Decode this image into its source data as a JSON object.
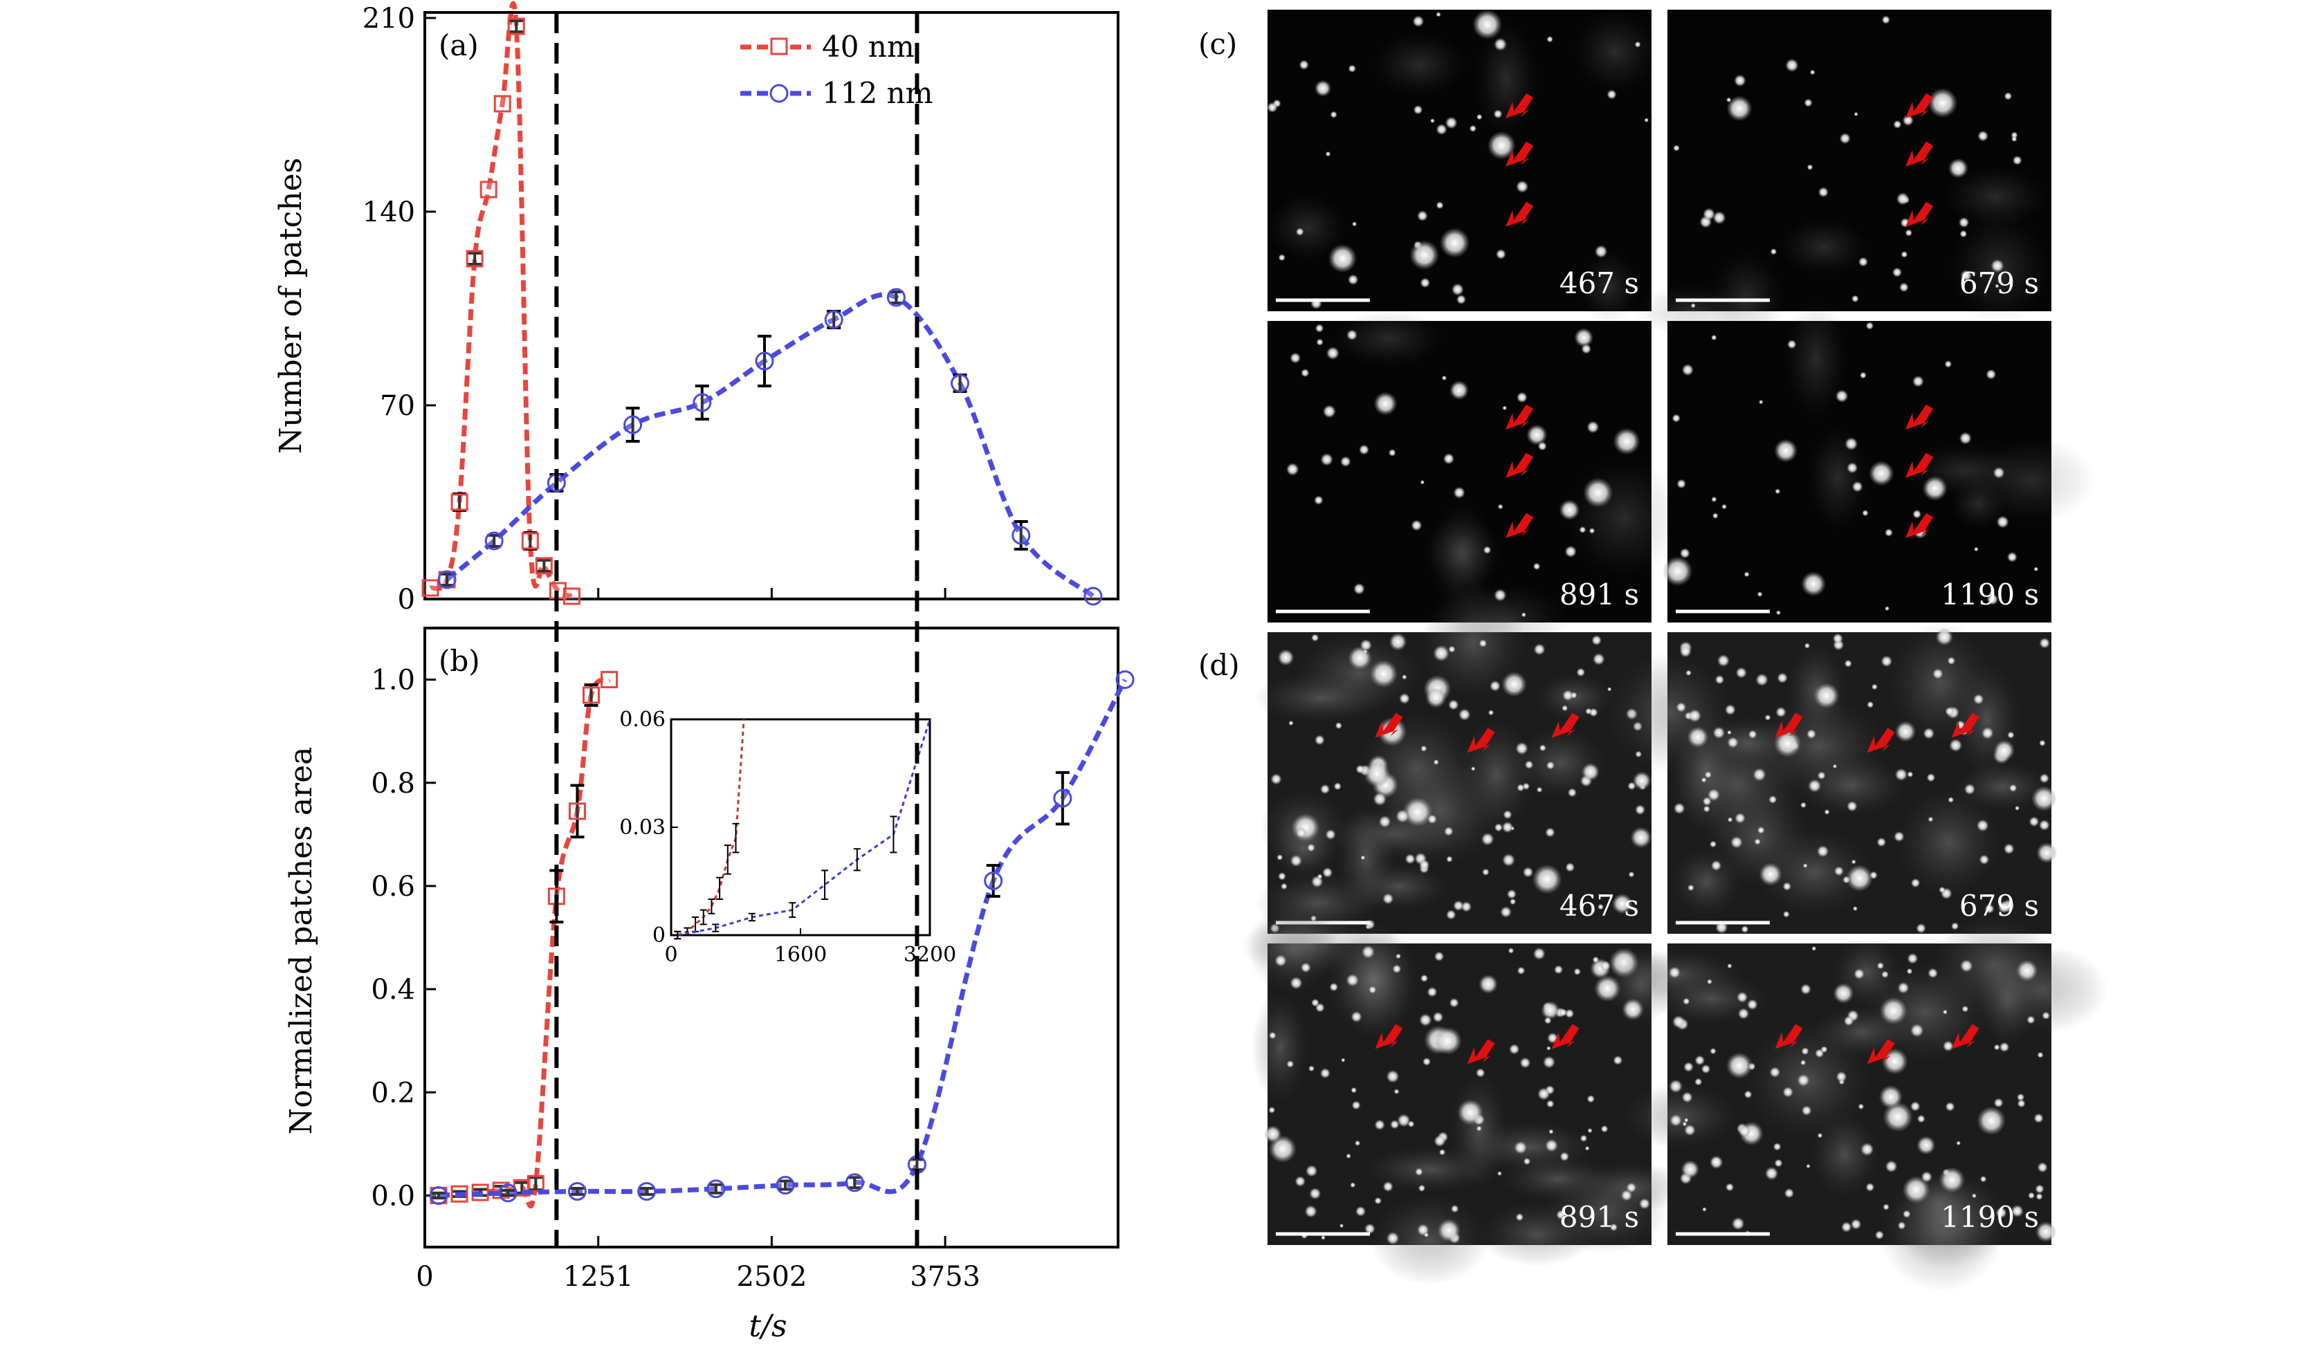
{
  "chart_data": [
    {
      "panel": "(a)",
      "type": "line",
      "ylabel": "Number of patches",
      "ylim": [
        0,
        210
      ],
      "yticks": [
        0,
        70,
        140,
        210
      ],
      "xlim": [
        0,
        5000
      ],
      "series": [
        {
          "name": "40 nm",
          "color": "#e8453c",
          "marker": "square",
          "x": [
            40,
            160,
            250,
            360,
            460,
            560,
            660,
            760,
            860,
            960,
            1060
          ],
          "y": [
            4,
            7,
            35,
            123,
            148,
            179,
            207,
            21,
            12,
            3,
            1
          ],
          "err": [
            0,
            2,
            3,
            2,
            0,
            0,
            2,
            3,
            2,
            0,
            0
          ]
        },
        {
          "name": "112 nm",
          "color": "#4a4ae0",
          "marker": "circle",
          "x": [
            160,
            500,
            950,
            1500,
            2000,
            2450,
            2950,
            3400,
            3860,
            4300,
            4820
          ],
          "y": [
            7,
            21,
            42,
            63,
            71,
            86,
            101,
            109,
            78,
            23,
            1
          ],
          "err": [
            2,
            2,
            3,
            6,
            6,
            9,
            3,
            2,
            3,
            5,
            0
          ]
        }
      ],
      "vlines_x": [
        950,
        3550
      ]
    },
    {
      "panel": "(b)",
      "type": "line",
      "ylabel": "Normalized patches area",
      "xlabel": "t/s",
      "ylim": [
        -0.1,
        1.1
      ],
      "yticks": [
        0,
        0.2,
        0.4,
        0.6,
        0.8,
        1.0
      ],
      "xticks": [
        0,
        1251,
        2502,
        3753
      ],
      "xlim": [
        0,
        5000
      ],
      "series": [
        {
          "name": "40 nm",
          "color": "#e8453c",
          "marker": "square",
          "x": [
            100,
            250,
            400,
            550,
            700,
            800,
            950,
            1100,
            1200,
            1330
          ],
          "y": [
            0.0,
            0.003,
            0.006,
            0.01,
            0.015,
            0.023,
            0.58,
            0.745,
            0.97,
            1.0
          ],
          "err": [
            0.004,
            0.005,
            0.006,
            0.008,
            0.01,
            0.012,
            0.05,
            0.05,
            0.02,
            0.0
          ]
        },
        {
          "name": "112 nm",
          "color": "#4a4ae0",
          "marker": "circle",
          "x": [
            100,
            600,
            1100,
            1600,
            2100,
            2600,
            3100,
            3550,
            4100,
            4600,
            5050
          ],
          "y": [
            0.0,
            0.005,
            0.008,
            0.008,
            0.013,
            0.02,
            0.025,
            0.06,
            0.61,
            0.77,
            1.0
          ],
          "err": [
            0.005,
            0.005,
            0.006,
            0.006,
            0.008,
            0.008,
            0.01,
            0.01,
            0.03,
            0.05,
            0.0
          ]
        }
      ],
      "vlines_x": [
        950,
        3550
      ],
      "inset": {
        "xlim": [
          0,
          3200
        ],
        "ylim": [
          0,
          0.06
        ],
        "xticks": [
          0,
          1600,
          3200
        ],
        "yticks": [
          0,
          0.03,
          0.06
        ],
        "series": [
          {
            "name": "40 nm",
            "color": "#c0392b",
            "x": [
              80,
              200,
              300,
              400,
              500,
              600,
              700,
              800,
              900
            ],
            "y": [
              0.0,
              0.001,
              0.003,
              0.005,
              0.008,
              0.013,
              0.021,
              0.027,
              0.06
            ],
            "err": [
              0.001,
              0.001,
              0.002,
              0.002,
              0.002,
              0.003,
              0.004,
              0.004,
              0.0
            ]
          },
          {
            "name": "112 nm",
            "color": "#3b3bd6",
            "x": [
              80,
              550,
              1000,
              1500,
              1900,
              2300,
              2750,
              3200
            ],
            "y": [
              0.0,
              0.002,
              0.005,
              0.007,
              0.014,
              0.021,
              0.028,
              0.06
            ],
            "err": [
              0.001,
              0.001,
              0.001,
              0.002,
              0.004,
              0.003,
              0.005,
              0.0
            ]
          }
        ]
      }
    }
  ],
  "legend": {
    "items": [
      {
        "label": "40 nm",
        "color": "#e8453c",
        "marker": "square"
      },
      {
        "label": "112 nm",
        "color": "#4a4ae0",
        "marker": "circle"
      }
    ]
  },
  "images": {
    "c_label": "(c)",
    "d_label": "(d)",
    "c_times": [
      "467 s",
      "679 s",
      "891 s",
      "1190 s"
    ],
    "d_times": [
      "467 s",
      "679 s",
      "891 s",
      "1190 s"
    ]
  }
}
